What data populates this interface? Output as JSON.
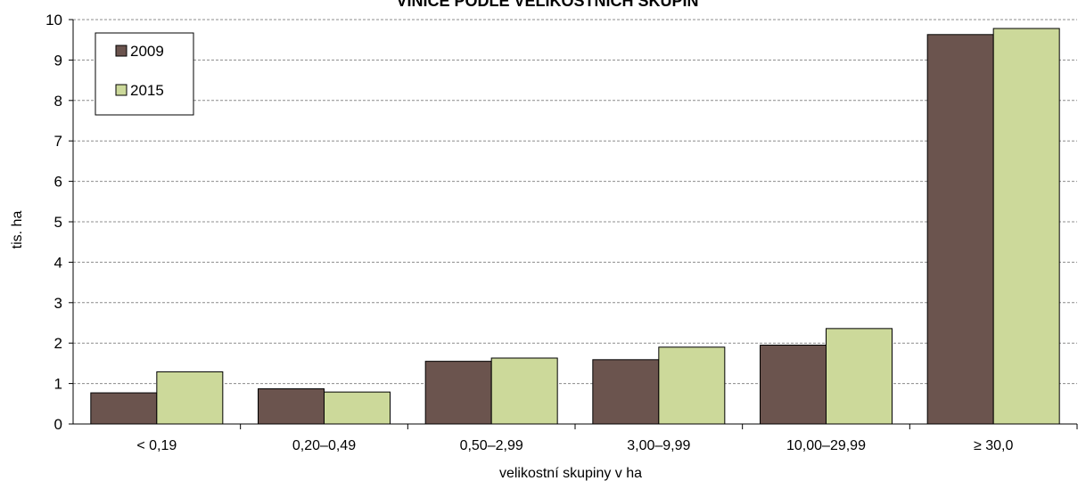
{
  "chart_data": {
    "type": "bar",
    "title": "VINICE PODLE VELIKOSTNÍCH SKUPIN",
    "xlabel": "velikostní skupiny v ha",
    "ylabel": "tis. ha",
    "ylim": [
      0,
      10
    ],
    "yticks": [
      "0",
      "1",
      "2",
      "3",
      "4",
      "5",
      "6",
      "7",
      "8",
      "9",
      "10"
    ],
    "grid": true,
    "legend_position": "top-left",
    "categories": [
      "< 0,19",
      "0,20–0,49",
      "0,50–2,99",
      "3,00–9,99",
      "10,00–29,99",
      "≥ 30,0"
    ],
    "series": [
      {
        "name": "2009",
        "color": "#6b544e",
        "values": [
          0.77,
          0.87,
          1.55,
          1.59,
          1.95,
          9.63
        ]
      },
      {
        "name": "2015",
        "color": "#ccd99a",
        "values": [
          1.29,
          0.79,
          1.63,
          1.9,
          2.36,
          9.78
        ]
      }
    ]
  }
}
